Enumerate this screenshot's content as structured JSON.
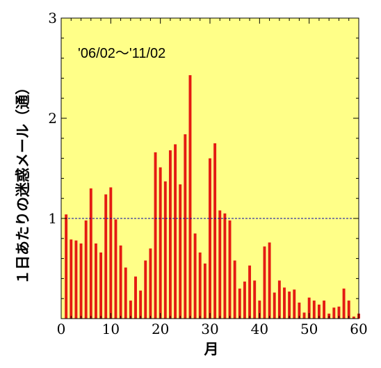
{
  "chart_data": {
    "type": "bar",
    "annotation": "'06/02～'11/02",
    "xlabel": "月",
    "ylabel": "１日あたりの迷惑メール（通）",
    "xlim": [
      0,
      60
    ],
    "ylim": [
      0,
      3
    ],
    "xticks": [
      0,
      10,
      20,
      30,
      40,
      50,
      60
    ],
    "yticks": [
      1,
      2,
      3
    ],
    "reference_line": 1,
    "background_color": "#ffff88",
    "bar_color": "#e41b12",
    "reference_line_color": "#0000aa",
    "grid": false,
    "x": [
      1,
      2,
      3,
      4,
      5,
      6,
      7,
      8,
      9,
      10,
      11,
      12,
      13,
      14,
      15,
      16,
      17,
      18,
      19,
      20,
      21,
      22,
      23,
      24,
      25,
      26,
      27,
      28,
      29,
      30,
      31,
      32,
      33,
      34,
      35,
      36,
      37,
      38,
      39,
      40,
      41,
      42,
      43,
      44,
      45,
      46,
      47,
      48,
      49,
      50,
      51,
      52,
      53,
      54,
      55,
      56,
      57,
      58,
      59,
      60
    ],
    "values": [
      1.04,
      0.79,
      0.78,
      0.75,
      0.98,
      1.3,
      0.75,
      0.66,
      1.24,
      1.31,
      0.99,
      0.73,
      0.51,
      0.18,
      0.42,
      0.28,
      0.58,
      0.7,
      1.66,
      1.51,
      1.37,
      1.68,
      1.74,
      1.34,
      1.84,
      2.43,
      0.85,
      0.66,
      0.55,
      1.6,
      1.75,
      1.08,
      1.05,
      0.98,
      0.58,
      0.3,
      0.37,
      0.53,
      0.38,
      0.18,
      0.72,
      0.76,
      0.26,
      0.38,
      0.31,
      0.27,
      0.29,
      0.16,
      0.06,
      0.21,
      0.18,
      0.14,
      0.18,
      0.05,
      0.11,
      0.12,
      0.3,
      0.18,
      0.02,
      0.05
    ]
  }
}
